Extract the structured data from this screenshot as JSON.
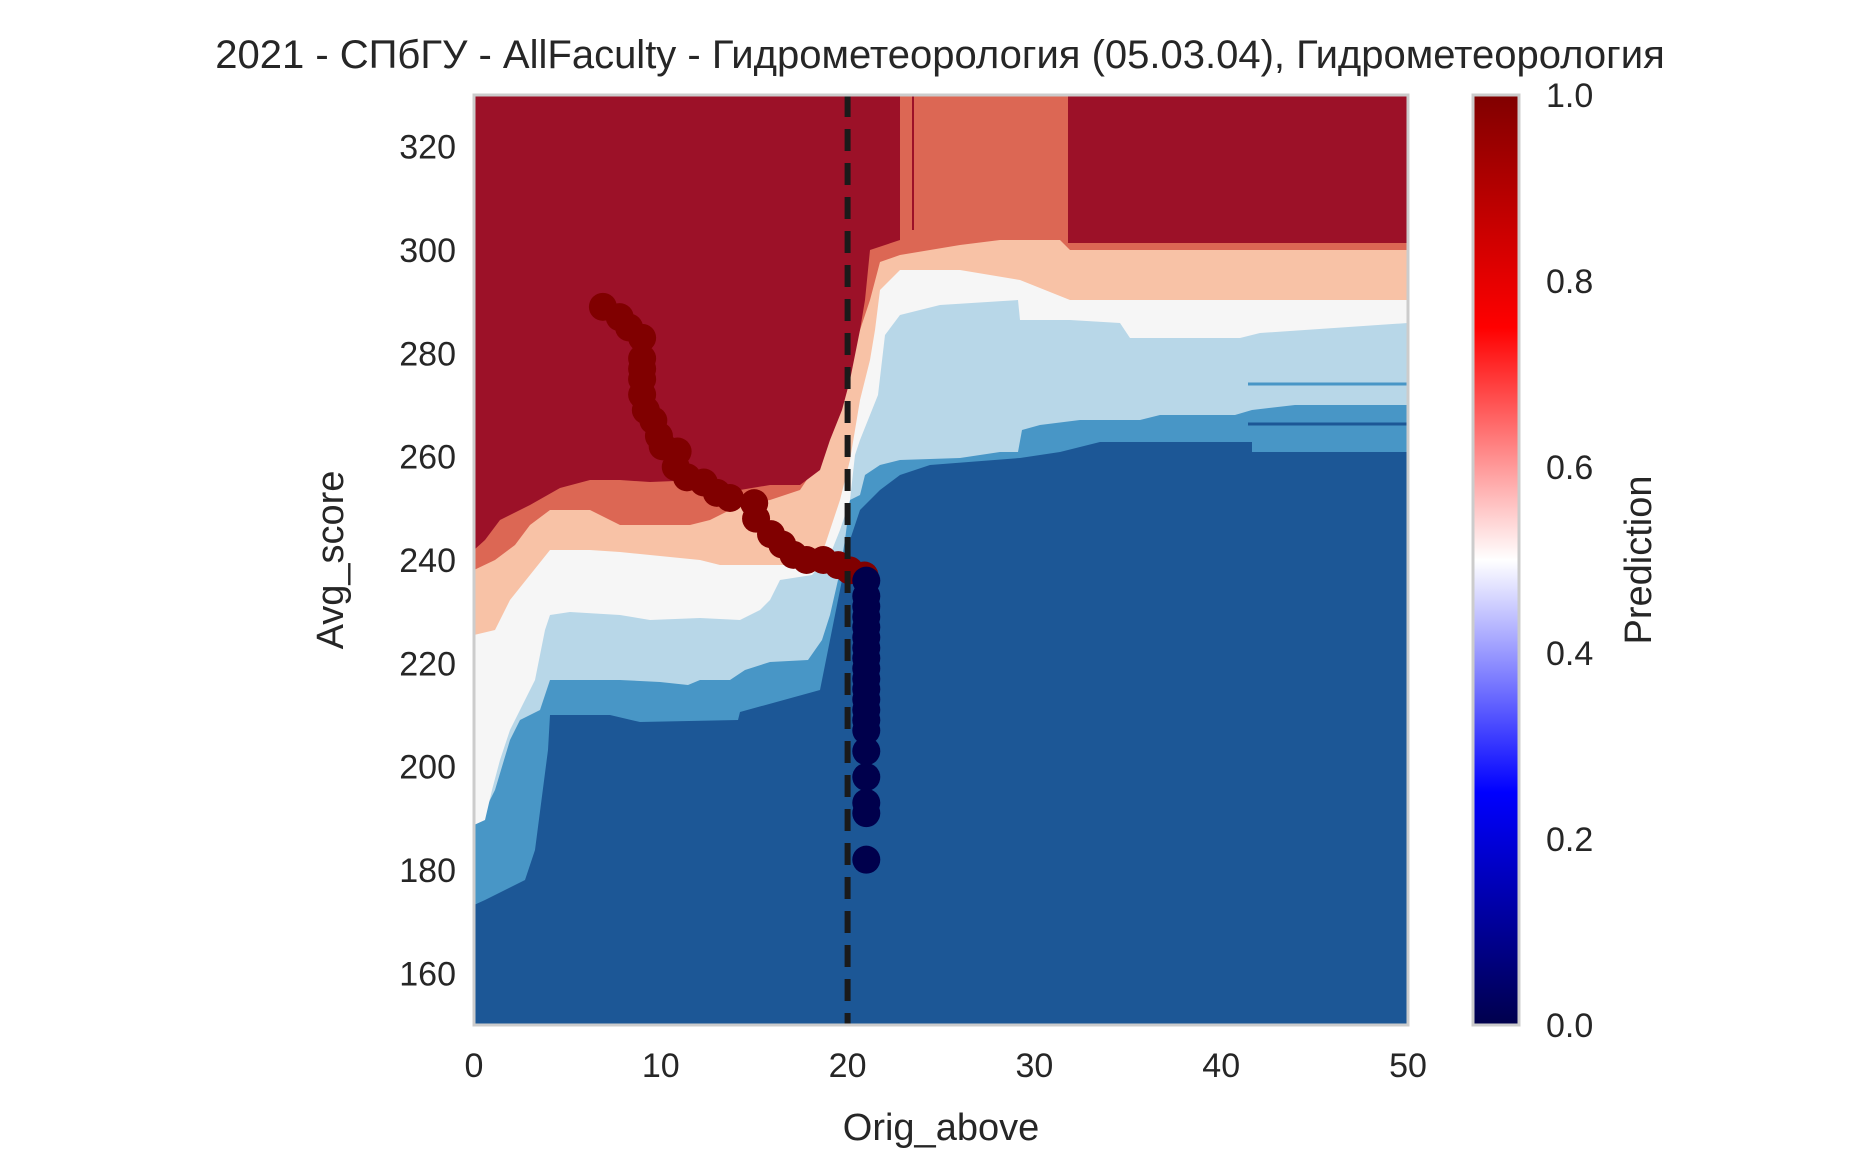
{
  "chart_data": {
    "type": "heatmap",
    "title": "2021 - СПбГУ - AllFaculty - Гидрометеорология (05.03.04), Гидрометеорология",
    "xlabel": "Orig_above",
    "ylabel": "Avg_score",
    "xlim": [
      0,
      50
    ],
    "ylim": [
      150,
      330
    ],
    "x_ticks": [
      0,
      10,
      20,
      30,
      40,
      50
    ],
    "y_ticks": [
      160,
      180,
      200,
      220,
      240,
      260,
      280,
      300,
      320
    ],
    "threshold_x": 20,
    "grid": false,
    "colorbar": {
      "label": "Prediction",
      "colormap": "seismic",
      "range": [
        0,
        1
      ],
      "ticks": [
        0.0,
        0.2,
        0.4,
        0.6,
        0.8,
        1.0
      ],
      "tick_labels": [
        "0.0",
        "0.2",
        "0.4",
        "0.6",
        "0.8",
        "1.0"
      ]
    },
    "contour_levels": [
      {
        "level": 0.0,
        "color": "#1c5796"
      },
      {
        "level": 0.2,
        "color": "#4896c6"
      },
      {
        "level": 0.4,
        "color": "#b8d7e8"
      },
      {
        "level": 0.5,
        "color": "#f6f6f6"
      },
      {
        "level": 0.6,
        "color": "#f8c2a6"
      },
      {
        "level": 0.8,
        "color": "#dc6754"
      },
      {
        "level": 0.9,
        "color": "#9c1128"
      }
    ],
    "series": [
      {
        "color": "#800000",
        "points": [
          {
            "x": 6.9,
            "y": 289
          },
          {
            "x": 7.8,
            "y": 287
          },
          {
            "x": 8.3,
            "y": 285
          },
          {
            "x": 9.0,
            "y": 283
          },
          {
            "x": 9.0,
            "y": 279
          },
          {
            "x": 9.0,
            "y": 277
          },
          {
            "x": 9.0,
            "y": 275
          },
          {
            "x": 9.0,
            "y": 272
          },
          {
            "x": 9.2,
            "y": 269
          },
          {
            "x": 9.6,
            "y": 267
          },
          {
            "x": 9.9,
            "y": 264
          },
          {
            "x": 10.1,
            "y": 262
          },
          {
            "x": 10.9,
            "y": 261
          },
          {
            "x": 10.8,
            "y": 258
          },
          {
            "x": 11.4,
            "y": 256
          },
          {
            "x": 12.3,
            "y": 255
          },
          {
            "x": 13.0,
            "y": 253
          },
          {
            "x": 13.7,
            "y": 252
          },
          {
            "x": 15.0,
            "y": 251
          },
          {
            "x": 15.1,
            "y": 248
          },
          {
            "x": 15.9,
            "y": 245
          },
          {
            "x": 16.5,
            "y": 243
          },
          {
            "x": 17.1,
            "y": 241
          },
          {
            "x": 17.8,
            "y": 240
          },
          {
            "x": 18.7,
            "y": 240
          },
          {
            "x": 19.5,
            "y": 239
          },
          {
            "x": 20.1,
            "y": 238
          },
          {
            "x": 20.9,
            "y": 237
          }
        ]
      },
      {
        "color": "#00004c",
        "points": [
          {
            "x": 21.0,
            "y": 236
          },
          {
            "x": 21.0,
            "y": 233
          },
          {
            "x": 21.0,
            "y": 231
          },
          {
            "x": 21.0,
            "y": 229
          },
          {
            "x": 21.0,
            "y": 227
          },
          {
            "x": 21.0,
            "y": 225
          },
          {
            "x": 21.0,
            "y": 223
          },
          {
            "x": 21.0,
            "y": 221
          },
          {
            "x": 21.0,
            "y": 219
          },
          {
            "x": 21.0,
            "y": 217
          },
          {
            "x": 21.0,
            "y": 215
          },
          {
            "x": 21.0,
            "y": 213
          },
          {
            "x": 21.0,
            "y": 211
          },
          {
            "x": 21.0,
            "y": 209
          },
          {
            "x": 21.0,
            "y": 207
          },
          {
            "x": 21.0,
            "y": 203
          },
          {
            "x": 21.0,
            "y": 198
          },
          {
            "x": 21.0,
            "y": 193
          },
          {
            "x": 21.0,
            "y": 191
          },
          {
            "x": 21.0,
            "y": 182
          }
        ]
      }
    ]
  }
}
